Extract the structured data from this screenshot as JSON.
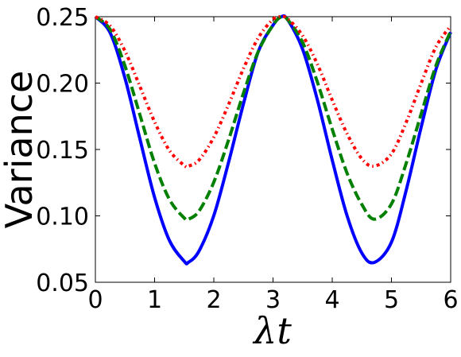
{
  "chart_data": {
    "type": "line",
    "title": "",
    "xlabel": "λt",
    "ylabel": "Variance",
    "xlim": [
      0,
      6
    ],
    "ylim": [
      0.05,
      0.25
    ],
    "xticks": [
      "0",
      "1",
      "2",
      "3",
      "4",
      "5",
      "6"
    ],
    "yticks": [
      "0.05",
      "0.10",
      "0.15",
      "0.20",
      "0.25"
    ],
    "grid": false,
    "legend": "none",
    "series": [
      {
        "color": "#0000ff",
        "linestyle": "solid",
        "x": [
          0,
          0.25,
          0.5,
          0.75,
          1.0,
          1.25,
          1.5,
          1.5708,
          1.75,
          2.0,
          2.25,
          2.5,
          2.75,
          3.0,
          3.1416,
          3.25,
          3.5,
          3.75,
          4.0,
          4.25,
          4.5,
          4.7124,
          5.0,
          5.25,
          5.5,
          5.75,
          6.0
        ],
        "y": [
          0.25,
          0.2378,
          0.2037,
          0.1583,
          0.1139,
          0.0815,
          0.0658,
          0.065,
          0.0735,
          0.1002,
          0.1405,
          0.1843,
          0.2236,
          0.2436,
          0.25,
          0.2476,
          0.2255,
          0.1872,
          0.142,
          0.1002,
          0.072,
          0.065,
          0.0802,
          0.1195,
          0.1665,
          0.2101,
          0.2383
        ]
      },
      {
        "color": "#008000",
        "linestyle": "dashed",
        "x": [
          0,
          0.25,
          0.5,
          0.75,
          1.0,
          1.25,
          1.5,
          1.5708,
          1.75,
          2.0,
          2.25,
          2.5,
          2.75,
          3.0,
          3.1416,
          3.25,
          3.5,
          3.75,
          4.0,
          4.25,
          4.5,
          4.7124,
          5.0,
          5.25,
          5.5,
          5.75,
          6.0
        ],
        "y": [
          0.25,
          0.2403,
          0.2129,
          0.1764,
          0.1397,
          0.1124,
          0.0984,
          0.0975,
          0.1036,
          0.1254,
          0.1573,
          0.1923,
          0.2237,
          0.2437,
          0.25,
          0.2476,
          0.2306,
          0.2006,
          0.1652,
          0.1322,
          0.1086,
          0.0975,
          0.109,
          0.1398,
          0.1765,
          0.2129,
          0.239
        ]
      },
      {
        "color": "#ff0000",
        "linestyle": "dashdot",
        "x": [
          0,
          0.25,
          0.5,
          0.75,
          1.0,
          1.25,
          1.5,
          1.5708,
          1.75,
          2.0,
          2.25,
          2.5,
          2.75,
          3.0,
          3.1416,
          3.25,
          3.5,
          3.75,
          4.0,
          4.25,
          4.5,
          4.7124,
          5.0,
          5.25,
          5.5,
          5.75,
          6.0
        ],
        "y": [
          0.25,
          0.2431,
          0.2241,
          0.1977,
          0.1708,
          0.1493,
          0.138,
          0.1375,
          0.142,
          0.1592,
          0.1839,
          0.2108,
          0.234,
          0.248,
          0.25,
          0.2484,
          0.2357,
          0.2141,
          0.1872,
          0.1619,
          0.143,
          0.1375,
          0.1467,
          0.1706,
          0.1996,
          0.2271,
          0.2431
        ]
      }
    ]
  }
}
